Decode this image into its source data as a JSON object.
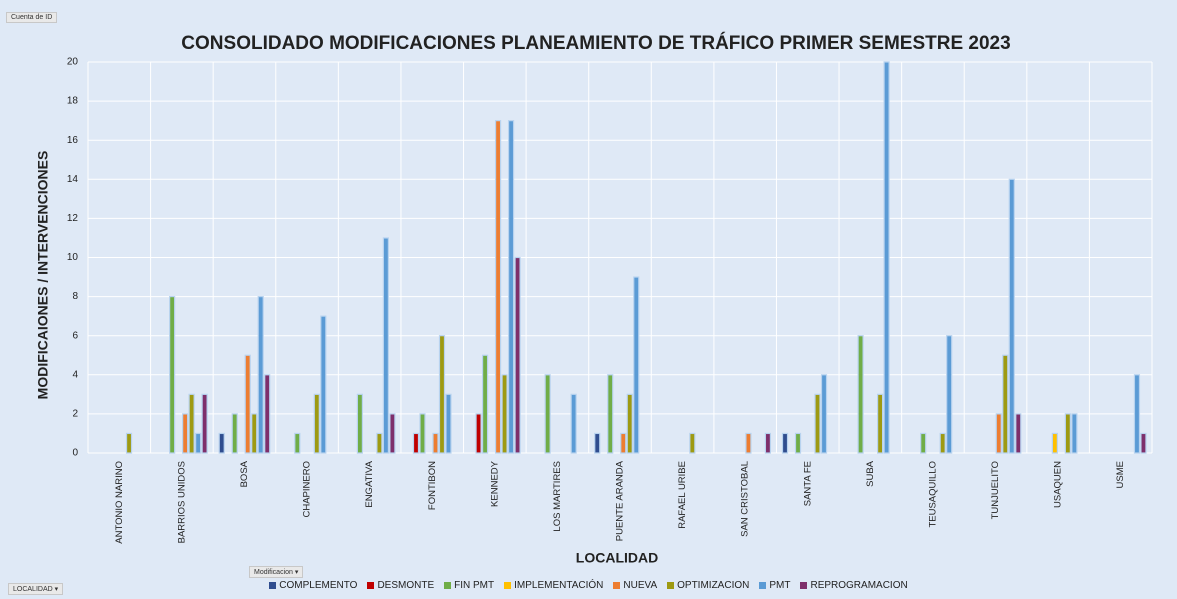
{
  "filters": {
    "values_field": "Cuenta de ID",
    "series_field": "Modificacion",
    "axis_field": "LOCALIDAD"
  },
  "chart_data": {
    "type": "bar",
    "title": "CONSOLIDADO MODIFICACIONES PLANEAMIENTO DE TRÁFICO PRIMER SEMESTRE 2023",
    "x_label": "LOCALIDAD",
    "y_label": "MODIFICAIONES / INTERVENCIONES",
    "categories": [
      "ANTONIO NARINO",
      "BARRIOS UNIDOS",
      "BOSA",
      "CHAPINERO",
      "ENGATIVA",
      "FONTIBON",
      "KENNEDY",
      "LOS MARTIRES",
      "PUENTE ARANDA",
      "RAFAEL URIBE",
      "SAN CRISTOBAL",
      "SANTA FE",
      "SUBA",
      "TEUSAQUILLO",
      "TUNJUELITO",
      "USAQUEN",
      "USME"
    ],
    "series": [
      {
        "name": "COMPLEMENTO",
        "color": "#2f4d8f",
        "values": [
          null,
          null,
          1,
          null,
          null,
          null,
          null,
          null,
          1,
          null,
          null,
          1,
          null,
          null,
          null,
          null,
          null
        ]
      },
      {
        "name": "DESMONTE",
        "color": "#c00000",
        "values": [
          null,
          null,
          null,
          null,
          null,
          1,
          2,
          null,
          null,
          null,
          null,
          null,
          null,
          null,
          null,
          null,
          null
        ]
      },
      {
        "name": "FIN PMT",
        "color": "#70ad47",
        "values": [
          null,
          8,
          2,
          1,
          3,
          2,
          5,
          4,
          4,
          null,
          null,
          1,
          6,
          1,
          null,
          null,
          null
        ]
      },
      {
        "name": "IMPLEMENTACIÓN",
        "color": "#ffc000",
        "values": [
          null,
          null,
          null,
          null,
          null,
          null,
          null,
          null,
          null,
          null,
          null,
          null,
          null,
          null,
          null,
          1,
          null
        ]
      },
      {
        "name": "NUEVA",
        "color": "#ed7d31",
        "values": [
          null,
          2,
          5,
          null,
          null,
          1,
          17,
          null,
          1,
          null,
          1,
          null,
          null,
          null,
          2,
          null,
          null
        ]
      },
      {
        "name": "OPTIMIZACION",
        "color": "#9e9a12",
        "values": [
          1,
          3,
          2,
          3,
          1,
          6,
          4,
          null,
          3,
          1,
          null,
          3,
          3,
          1,
          5,
          2,
          null
        ]
      },
      {
        "name": "PMT",
        "color": "#5b9bd5",
        "values": [
          null,
          1,
          8,
          7,
          11,
          3,
          17,
          3,
          9,
          null,
          null,
          4,
          20,
          6,
          14,
          2,
          4
        ]
      },
      {
        "name": "REPROGRAMACION",
        "color": "#7e2f6b",
        "values": [
          null,
          3,
          4,
          null,
          2,
          null,
          10,
          null,
          null,
          null,
          1,
          null,
          null,
          null,
          2,
          null,
          1
        ]
      }
    ],
    "ylim": [
      0,
      20
    ],
    "yticks": [
      0,
      2,
      4,
      6,
      8,
      10,
      12,
      14,
      16,
      18,
      20
    ],
    "grid": true,
    "legend": "bottom"
  }
}
